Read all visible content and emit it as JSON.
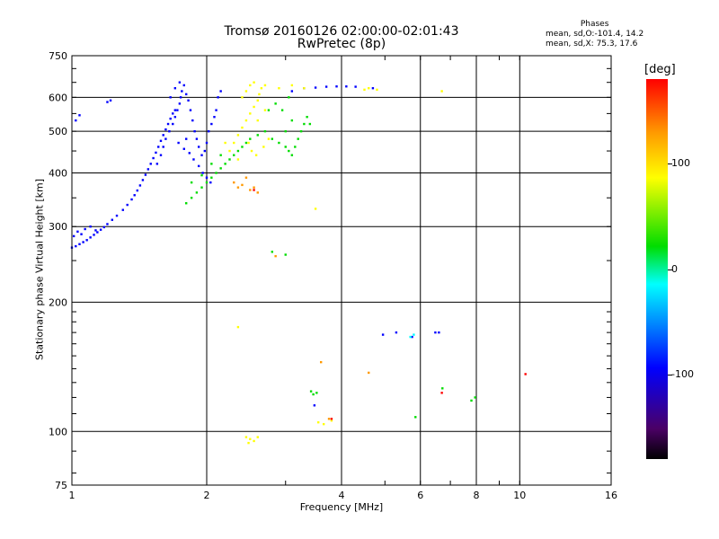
{
  "chart_data": {
    "type": "scatter",
    "title": "Tromsø 20160126 02:00:00-02:01:43",
    "subtitle": "RwPretec (8p)",
    "xlabel": "Frequency [MHz]",
    "ylabel": "Stationary phase Virtual Height [km]",
    "x_scale": "log",
    "y_scale": "log",
    "xlim": [
      1,
      16
    ],
    "ylim": [
      75,
      750
    ],
    "x_ticks": [
      1,
      2,
      4,
      6,
      8,
      10,
      16
    ],
    "y_ticks": [
      75,
      100,
      200,
      300,
      400,
      500,
      600,
      750
    ],
    "grid": true,
    "colorbar": {
      "label": "[deg]",
      "ticks": [
        -100,
        0,
        100
      ],
      "range": [
        -180,
        180
      ],
      "colors": [
        "#000000",
        "#0000ff",
        "#00ffff",
        "#00dd00",
        "#ffff00",
        "#ff0000"
      ]
    },
    "phase_stats": {
      "header": "Phases",
      "line_o": "mean, sd,O:-101.4, 14.2",
      "line_x": "mean, sd,X:  75.3, 17.6"
    },
    "series": [
      {
        "color": "#0000ff",
        "points": [
          [
            1.0,
            268
          ],
          [
            1.02,
            270
          ],
          [
            1.04,
            273
          ],
          [
            1.06,
            276
          ],
          [
            1.08,
            279
          ],
          [
            1.1,
            283
          ],
          [
            1.12,
            287
          ],
          [
            1.14,
            291
          ],
          [
            1.16,
            295
          ],
          [
            1.18,
            299
          ],
          [
            1.2,
            304
          ],
          [
            1.23,
            311
          ],
          [
            1.26,
            318
          ],
          [
            1.3,
            328
          ],
          [
            1.33,
            337
          ],
          [
            1.36,
            347
          ],
          [
            1.38,
            355
          ],
          [
            1.4,
            364
          ],
          [
            1.42,
            374
          ],
          [
            1.44,
            385
          ],
          [
            1.46,
            396
          ],
          [
            1.48,
            408
          ],
          [
            1.5,
            420
          ],
          [
            1.52,
            433
          ],
          [
            1.54,
            446
          ],
          [
            1.56,
            460
          ],
          [
            1.58,
            475
          ],
          [
            1.6,
            490
          ],
          [
            1.62,
            505
          ],
          [
            1.64,
            520
          ],
          [
            1.66,
            535
          ],
          [
            1.68,
            550
          ],
          [
            1.7,
            560
          ],
          [
            1.01,
            285
          ],
          [
            1.03,
            292
          ],
          [
            1.05,
            288
          ],
          [
            1.07,
            296
          ],
          [
            1.1,
            300
          ],
          [
            1.13,
            294
          ],
          [
            1.02,
            530
          ],
          [
            1.04,
            545
          ],
          [
            1.2,
            585
          ],
          [
            1.22,
            590
          ],
          [
            1.55,
            420
          ],
          [
            1.58,
            440
          ],
          [
            1.6,
            460
          ],
          [
            1.62,
            480
          ],
          [
            1.65,
            500
          ],
          [
            1.68,
            520
          ],
          [
            1.7,
            540
          ],
          [
            1.72,
            560
          ],
          [
            1.74,
            580
          ],
          [
            1.75,
            600
          ],
          [
            1.76,
            620
          ],
          [
            1.78,
            640
          ],
          [
            1.8,
            610
          ],
          [
            1.82,
            590
          ],
          [
            1.84,
            560
          ],
          [
            1.86,
            530
          ],
          [
            1.88,
            500
          ],
          [
            1.9,
            480
          ],
          [
            1.92,
            460
          ],
          [
            1.95,
            440
          ],
          [
            1.98,
            450
          ],
          [
            2.0,
            470
          ],
          [
            2.02,
            500
          ],
          [
            2.05,
            520
          ],
          [
            2.08,
            540
          ],
          [
            2.1,
            560
          ],
          [
            2.12,
            600
          ],
          [
            2.15,
            620
          ],
          [
            1.73,
            470
          ],
          [
            1.78,
            455
          ],
          [
            1.83,
            445
          ],
          [
            1.87,
            430
          ],
          [
            1.92,
            415
          ],
          [
            1.96,
            400
          ],
          [
            2.0,
            390
          ],
          [
            2.04,
            380
          ],
          [
            1.66,
            600
          ],
          [
            1.7,
            630
          ],
          [
            1.74,
            650
          ],
          [
            1.8,
            480
          ],
          [
            3.1,
            620
          ],
          [
            3.3,
            630
          ],
          [
            3.5,
            632
          ],
          [
            3.7,
            635
          ],
          [
            3.9,
            636
          ],
          [
            4.1,
            636
          ],
          [
            4.3,
            635
          ],
          [
            4.7,
            630
          ],
          [
            3.48,
            115
          ],
          [
            4.95,
            168
          ],
          [
            5.3,
            170
          ],
          [
            5.75,
            166
          ],
          [
            6.48,
            170
          ],
          [
            6.6,
            170
          ]
        ]
      },
      {
        "color": "#00dd00",
        "points": [
          [
            1.8,
            340
          ],
          [
            1.85,
            350
          ],
          [
            1.9,
            360
          ],
          [
            1.95,
            370
          ],
          [
            2.0,
            380
          ],
          [
            2.05,
            390
          ],
          [
            2.1,
            400
          ],
          [
            2.15,
            410
          ],
          [
            2.2,
            420
          ],
          [
            2.25,
            430
          ],
          [
            2.3,
            440
          ],
          [
            2.35,
            450
          ],
          [
            2.4,
            460
          ],
          [
            2.45,
            470
          ],
          [
            2.5,
            480
          ],
          [
            2.6,
            490
          ],
          [
            2.7,
            500
          ],
          [
            2.8,
            480
          ],
          [
            2.9,
            470
          ],
          [
            3.0,
            460
          ],
          [
            3.05,
            450
          ],
          [
            3.1,
            440
          ],
          [
            3.15,
            460
          ],
          [
            3.2,
            480
          ],
          [
            3.25,
            500
          ],
          [
            3.3,
            520
          ],
          [
            3.35,
            540
          ],
          [
            3.4,
            520
          ],
          [
            3.0,
            500
          ],
          [
            3.1,
            530
          ],
          [
            2.75,
            560
          ],
          [
            2.85,
            580
          ],
          [
            2.95,
            560
          ],
          [
            3.05,
            600
          ],
          [
            1.85,
            380
          ],
          [
            1.95,
            395
          ],
          [
            2.05,
            420
          ],
          [
            2.15,
            440
          ],
          [
            2.8,
            262
          ],
          [
            3.0,
            258
          ],
          [
            3.42,
            124
          ],
          [
            3.46,
            122
          ],
          [
            3.52,
            123
          ],
          [
            5.85,
            108
          ],
          [
            6.72,
            126
          ],
          [
            7.8,
            118
          ],
          [
            7.95,
            120
          ]
        ]
      },
      {
        "color": "#ffff00",
        "points": [
          [
            2.3,
            470
          ],
          [
            2.35,
            490
          ],
          [
            2.4,
            510
          ],
          [
            2.45,
            530
          ],
          [
            2.5,
            550
          ],
          [
            2.55,
            570
          ],
          [
            2.6,
            590
          ],
          [
            2.62,
            610
          ],
          [
            2.65,
            630
          ],
          [
            2.55,
            650
          ],
          [
            2.48,
            470
          ],
          [
            2.52,
            450
          ],
          [
            2.58,
            440
          ],
          [
            2.68,
            460
          ],
          [
            2.75,
            480
          ],
          [
            2.4,
            600
          ],
          [
            2.45,
            620
          ],
          [
            2.5,
            640
          ],
          [
            2.7,
            640
          ],
          [
            2.9,
            630
          ],
          [
            3.1,
            640
          ],
          [
            3.3,
            630
          ],
          [
            4.5,
            625
          ],
          [
            4.6,
            630
          ],
          [
            4.8,
            625
          ],
          [
            2.2,
            470
          ],
          [
            2.25,
            450
          ],
          [
            2.35,
            430
          ],
          [
            2.6,
            530
          ],
          [
            2.7,
            560
          ],
          [
            2.45,
            97
          ],
          [
            2.5,
            96
          ],
          [
            2.55,
            95
          ],
          [
            2.6,
            97
          ],
          [
            2.48,
            94
          ],
          [
            3.55,
            105
          ],
          [
            3.65,
            104
          ],
          [
            6.7,
            620
          ],
          [
            2.35,
            175
          ],
          [
            3.8,
            106
          ],
          [
            3.5,
            330
          ]
        ]
      },
      {
        "color": "#ff9900",
        "points": [
          [
            2.3,
            380
          ],
          [
            2.35,
            370
          ],
          [
            2.4,
            375
          ],
          [
            2.45,
            390
          ],
          [
            2.55,
            370
          ],
          [
            2.6,
            360
          ],
          [
            2.5,
            365
          ],
          [
            2.85,
            256
          ],
          [
            3.6,
            145
          ],
          [
            4.6,
            137
          ],
          [
            3.75,
            107
          ]
        ]
      },
      {
        "color": "#ff0000",
        "points": [
          [
            3.8,
            107
          ],
          [
            10.3,
            136
          ],
          [
            6.7,
            123
          ],
          [
            2.55,
            365
          ]
        ]
      },
      {
        "color": "#00ffff",
        "points": [
          [
            5.8,
            168
          ],
          [
            5.7,
            166
          ]
        ]
      }
    ]
  }
}
